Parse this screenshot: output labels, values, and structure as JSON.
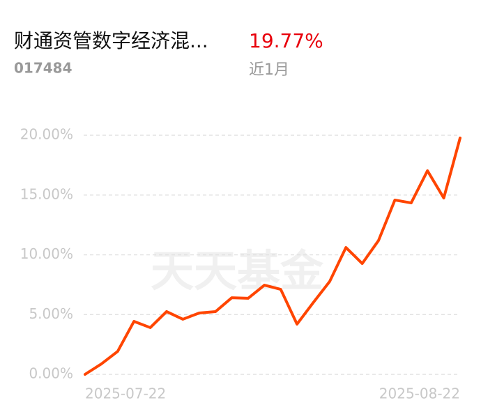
{
  "header": {
    "title": "财通资管数字经济混...",
    "code": "017484",
    "period_return": {
      "value": 19.77,
      "label": "19.77%"
    },
    "period": "近1月"
  },
  "chart_data": {
    "type": "line",
    "watermark": "天天基金",
    "categories": [
      "2025-07-22",
      null,
      null,
      null,
      null,
      null,
      null,
      null,
      null,
      null,
      null,
      null,
      null,
      null,
      null,
      null,
      null,
      null,
      null,
      null,
      null,
      null,
      null,
      "2025-08-22"
    ],
    "values": [
      0.0,
      0.87,
      1.92,
      4.43,
      3.91,
      5.25,
      4.61,
      5.13,
      5.25,
      6.41,
      6.36,
      7.46,
      7.11,
      4.2,
      6.01,
      7.76,
      10.61,
      9.27,
      11.2,
      14.58,
      14.34,
      17.03,
      14.75,
      19.77
    ],
    "color": "#ff4500",
    "ylim": [
      0,
      20
    ],
    "yticks": [
      {
        "value": 0,
        "label": "0.00%"
      },
      {
        "value": 5,
        "label": "5.00%"
      },
      {
        "value": 10,
        "label": "10.00%"
      },
      {
        "value": 15,
        "label": "15.00%"
      },
      {
        "value": 20,
        "label": "20.00%"
      }
    ],
    "grid": true
  }
}
